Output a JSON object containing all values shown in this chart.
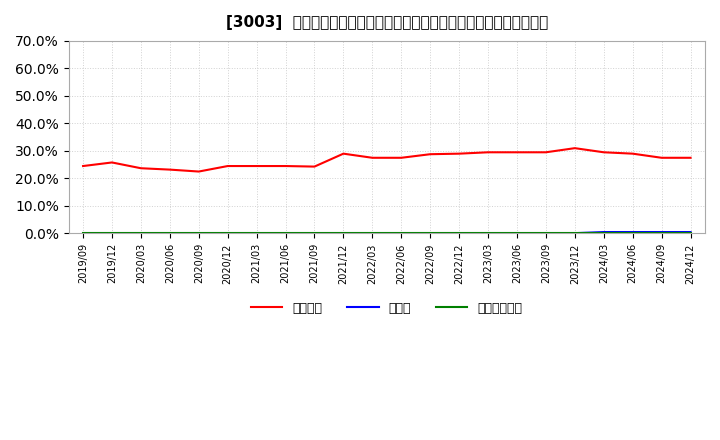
{
  "title": "[3003]  自己資本、のれん、繰延税金資産の総資産に対する比率の推移",
  "dates": [
    "2019-09",
    "2019-12",
    "2020-03",
    "2020-06",
    "2020-09",
    "2020-12",
    "2021-03",
    "2021-06",
    "2021-09",
    "2021-12",
    "2022-03",
    "2022-06",
    "2022-09",
    "2022-12",
    "2023-03",
    "2023-06",
    "2023-09",
    "2023-12",
    "2024-03",
    "2024-06",
    "2024-09",
    "2024-12"
  ],
  "equity_ratio": [
    24.5,
    25.8,
    23.7,
    23.2,
    22.5,
    24.5,
    24.5,
    24.5,
    24.3,
    29.0,
    27.5,
    27.5,
    28.8,
    29.0,
    29.5,
    29.5,
    29.5,
    31.0,
    29.5,
    29.0,
    27.5,
    27.5
  ],
  "noren_ratio": [
    0.1,
    0.1,
    0.1,
    0.1,
    0.1,
    0.1,
    0.1,
    0.1,
    0.1,
    0.1,
    0.1,
    0.1,
    0.1,
    0.1,
    0.1,
    0.1,
    0.1,
    0.1,
    0.5,
    0.5,
    0.5,
    0.5
  ],
  "deferred_tax_ratio": [
    0.05,
    0.05,
    0.05,
    0.05,
    0.05,
    0.05,
    0.05,
    0.05,
    0.05,
    0.05,
    0.05,
    0.05,
    0.05,
    0.05,
    0.05,
    0.05,
    0.05,
    0.05,
    0.05,
    0.05,
    0.05,
    0.05
  ],
  "equity_color": "#ff0000",
  "noren_color": "#0000ff",
  "deferred_tax_color": "#008000",
  "bg_color": "#ffffff",
  "plot_bg_color": "#ffffff",
  "grid_color": "#cccccc",
  "ylim": [
    0,
    70
  ],
  "yticks": [
    0,
    10,
    20,
    30,
    40,
    50,
    60,
    70
  ],
  "legend_labels": [
    "自己資本",
    "のれん",
    "繰延税金資産"
  ],
  "xtick_labels": [
    "2019/09",
    "2019/12",
    "2020/03",
    "2020/06",
    "2020/09",
    "2020/12",
    "2021/03",
    "2021/06",
    "2021/09",
    "2021/12",
    "2022/03",
    "2022/06",
    "2022/09",
    "2022/12",
    "2023/03",
    "2023/06",
    "2023/09",
    "2023/12",
    "2024/03",
    "2024/06",
    "2024/09",
    "2024/12"
  ]
}
